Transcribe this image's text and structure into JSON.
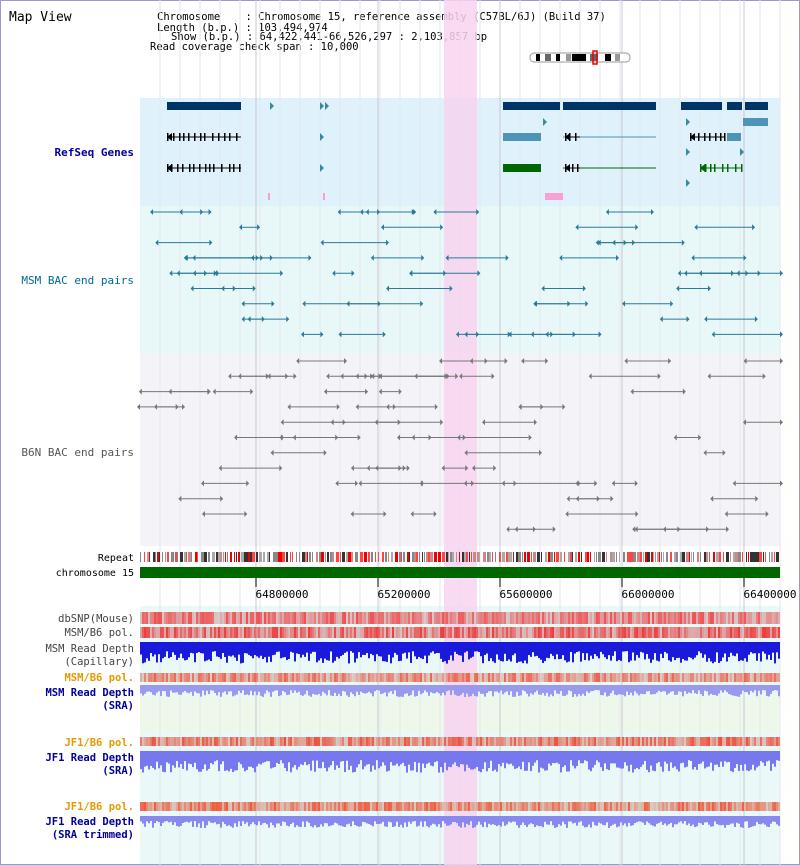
{
  "view_title": "Map View",
  "header": {
    "chromosome": "Chromosome    : Chromosome 15, reference assembly (C57BL/6J) (Build 37)",
    "length": "Length (b.p.) : 103,494,974",
    "show": "Show (b.p.) : 64,422,441-66,526,297 : 2,103,857 bp",
    "coverage": "Read coverage check span : 10,000"
  },
  "tracks": {
    "refseq": "RefSeq Genes",
    "msm_bac": "MSM BAC end pairs",
    "b6n_bac": "B6N BAC end pairs",
    "repeat": "Repeat",
    "chrom": "chromosome 15",
    "dbsnp": "dbSNP(Mouse)",
    "msm_pol": "MSM/B6 pol.",
    "msm_depth_cap_1": "MSM Read Depth",
    "msm_depth_cap_2": "(Capillary)",
    "msm_pol_sra": "MSM/B6 pol.",
    "msm_depth_sra_1": "MSM Read Depth",
    "msm_depth_sra_2": "(SRA)",
    "jf1_pol": "JF1/B6 pol.",
    "jf1_depth_1": "JF1 Read Depth",
    "jf1_depth_2": "(SRA)",
    "jf1_pol_trim": "JF1/B6 pol.",
    "jf1_trim_1": "JF1 Read Depth",
    "jf1_trim_2": "(SRA trimmed)"
  },
  "axis_ticks": [
    "64800000",
    "65200000",
    "65600000",
    "66000000",
    "66400000"
  ],
  "colors": {
    "refseq_bg": "#dff1fa",
    "msm_bg": "#e8f8f8",
    "highlight": "#f7d4f0",
    "chrom_bar": "#006600",
    "msm_label": "#006699",
    "refseq_label": "#000099",
    "gold": "#e69900",
    "dark_navy": "#003366",
    "steel_blue": "#4d94b8",
    "green": "#006600",
    "grey_label": "#444444"
  }
}
